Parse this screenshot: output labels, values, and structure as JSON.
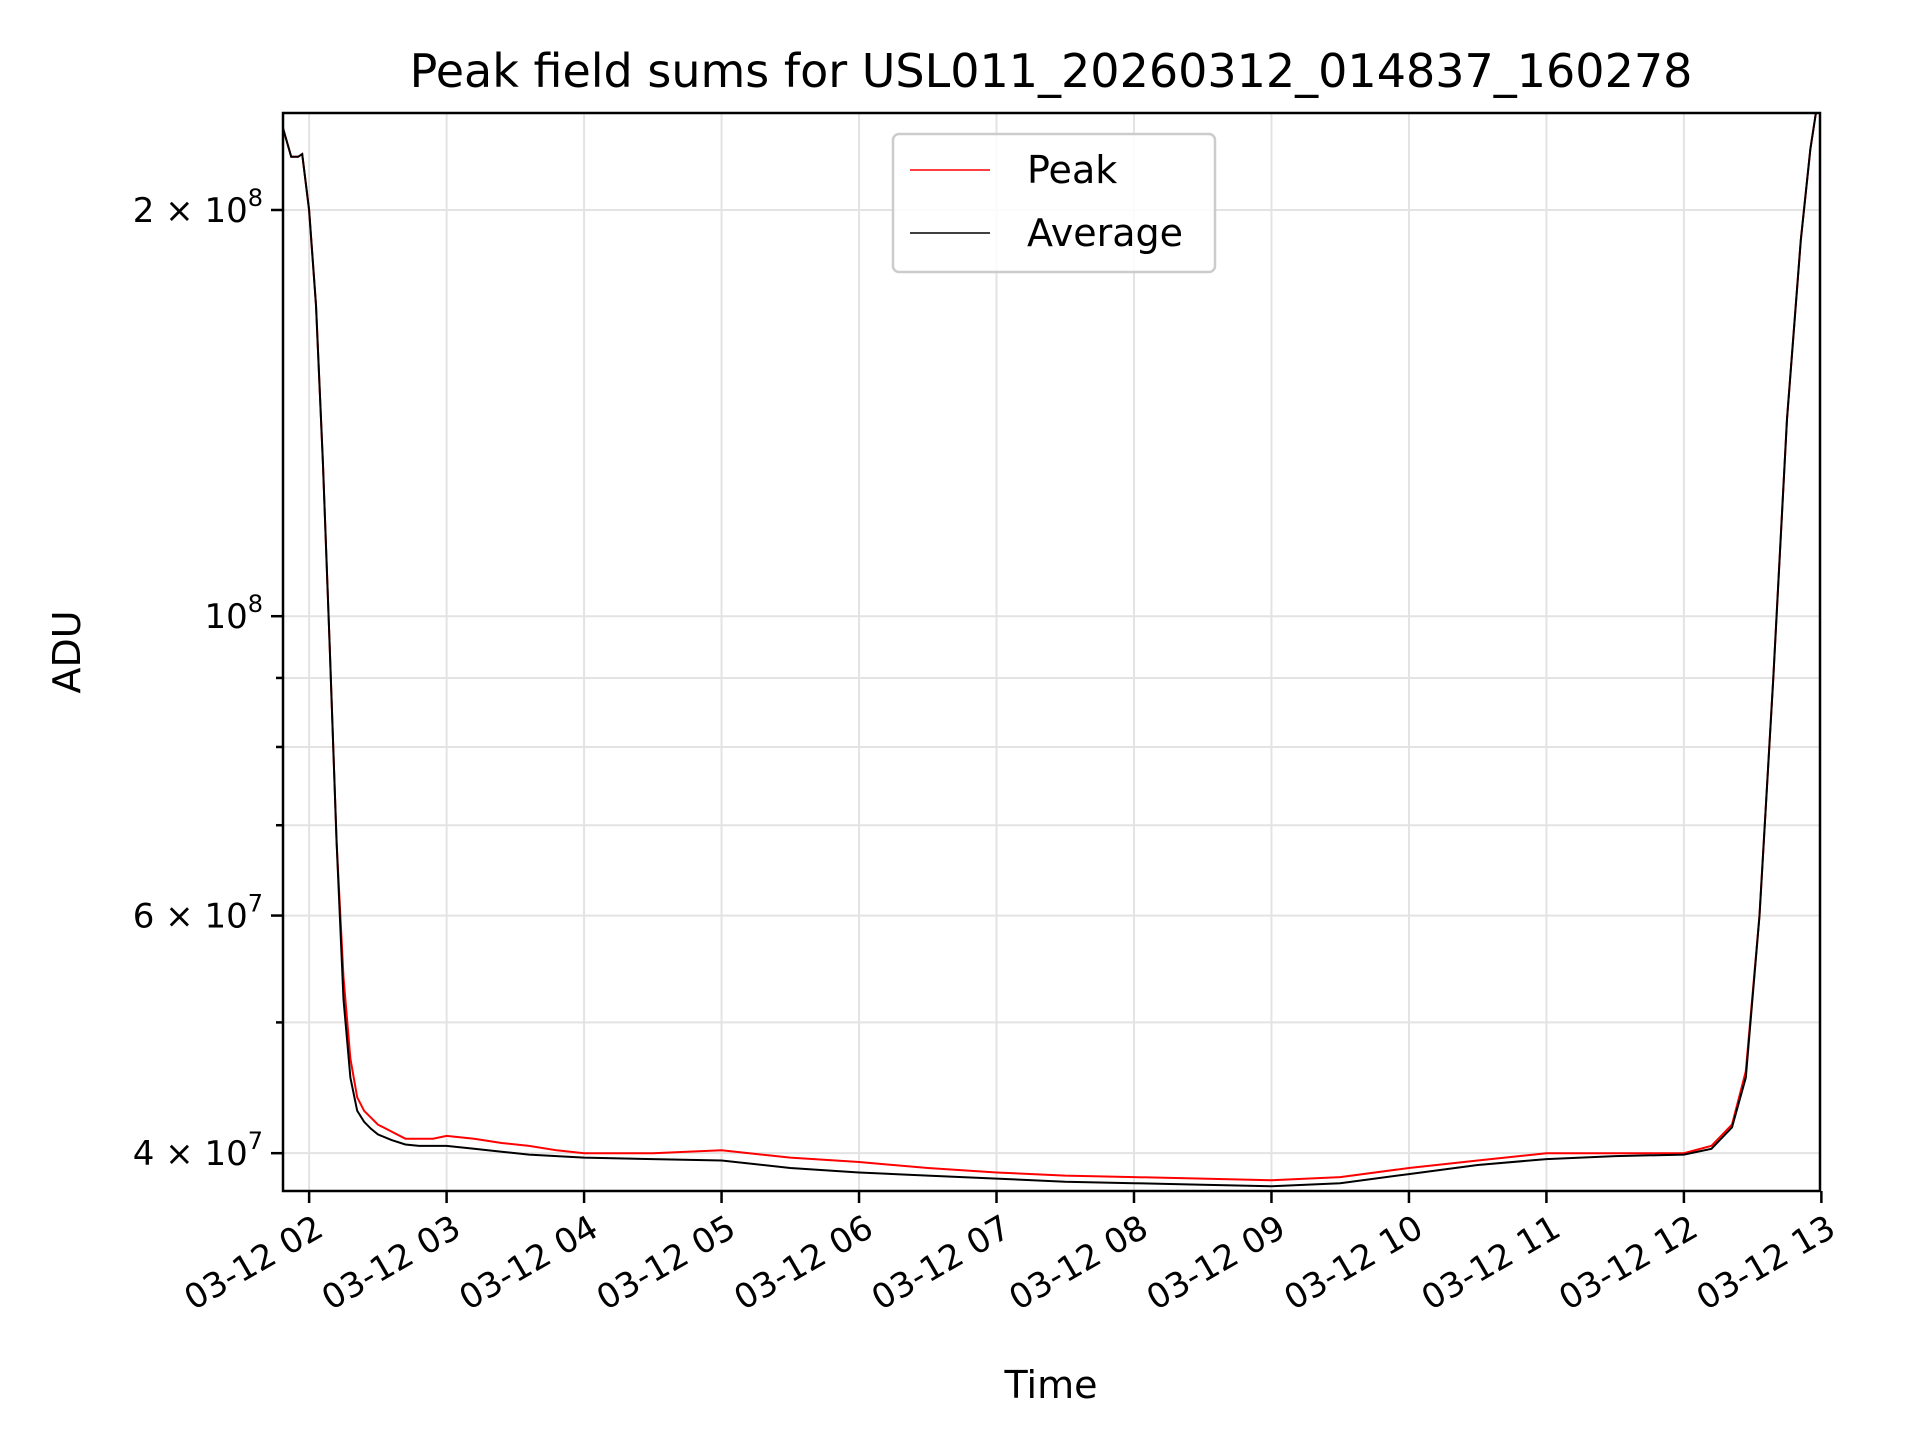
{
  "chart_data": {
    "type": "line",
    "title": "Peak field sums for USL011_20260312_014837_160278",
    "xlabel": "Time",
    "ylabel": "ADU",
    "yscale": "log",
    "ylim": [
      37500000,
      236000000
    ],
    "xlim": [
      1.81,
      12.99
    ],
    "x_unit": "hours since 2026-03-12 00:00",
    "grid": true,
    "legend_position": "upper-center",
    "x_ticks": [
      {
        "value": 2,
        "label": "03-12 02"
      },
      {
        "value": 3,
        "label": "03-12 03"
      },
      {
        "value": 4,
        "label": "03-12 04"
      },
      {
        "value": 5,
        "label": "03-12 05"
      },
      {
        "value": 6,
        "label": "03-12 06"
      },
      {
        "value": 7,
        "label": "03-12 07"
      },
      {
        "value": 8,
        "label": "03-12 08"
      },
      {
        "value": 9,
        "label": "03-12 09"
      },
      {
        "value": 10,
        "label": "03-12 10"
      },
      {
        "value": 11,
        "label": "03-12 11"
      },
      {
        "value": 12,
        "label": "03-12 12"
      },
      {
        "value": 13,
        "label": "03-12 13"
      }
    ],
    "y_major_ticks": [
      {
        "value": 40000000,
        "base": "4",
        "exp": "7",
        "label": "4 × 10^7"
      },
      {
        "value": 60000000,
        "base": "6",
        "exp": "7",
        "label": "6 × 10^7"
      },
      {
        "value": 100000000,
        "base": "",
        "exp": "8",
        "label": "10^8"
      },
      {
        "value": 200000000,
        "base": "2",
        "exp": "8",
        "label": "2 × 10^8"
      }
    ],
    "y_minor_ticks": [
      50000000,
      70000000,
      80000000,
      90000000
    ],
    "series": [
      {
        "name": "Peak",
        "color": "#ff0000",
        "x": [
          1.81,
          1.87,
          1.92,
          1.95,
          2.0,
          2.05,
          2.1,
          2.15,
          2.2,
          2.25,
          2.3,
          2.35,
          2.4,
          2.45,
          2.5,
          2.6,
          2.7,
          2.8,
          2.9,
          3.0,
          3.2,
          3.4,
          3.6,
          3.8,
          4.0,
          4.5,
          5.0,
          5.5,
          6.0,
          6.5,
          7.0,
          7.5,
          8.0,
          8.5,
          9.0,
          9.5,
          10.0,
          10.5,
          11.0,
          11.5,
          12.0,
          12.2,
          12.35,
          12.45,
          12.55,
          12.65,
          12.75,
          12.85,
          12.92,
          12.96,
          12.99
        ],
        "values": [
          230000000,
          219000000,
          219000000,
          220000000,
          200000000,
          170000000,
          130000000,
          95000000,
          68000000,
          54000000,
          47000000,
          44000000,
          43000000,
          42500000,
          42000000,
          41500000,
          41000000,
          41000000,
          41000000,
          41200000,
          41000000,
          40700000,
          40500000,
          40200000,
          40000000,
          40000000,
          40200000,
          39700000,
          39400000,
          39000000,
          38700000,
          38500000,
          38400000,
          38300000,
          38200000,
          38400000,
          39000000,
          39500000,
          40000000,
          40000000,
          40000000,
          40500000,
          42000000,
          46000000,
          60000000,
          90000000,
          140000000,
          190000000,
          222000000,
          236000000,
          236000000
        ]
      },
      {
        "name": "Average",
        "color": "#000000",
        "x": [
          1.81,
          1.87,
          1.92,
          1.95,
          2.0,
          2.05,
          2.1,
          2.15,
          2.2,
          2.25,
          2.3,
          2.35,
          2.4,
          2.45,
          2.5,
          2.6,
          2.7,
          2.8,
          2.9,
          3.0,
          3.2,
          3.4,
          3.6,
          3.8,
          4.0,
          4.5,
          5.0,
          5.5,
          6.0,
          6.5,
          7.0,
          7.5,
          8.0,
          8.5,
          9.0,
          9.5,
          10.0,
          10.5,
          11.0,
          11.5,
          12.0,
          12.2,
          12.35,
          12.45,
          12.55,
          12.65,
          12.75,
          12.85,
          12.92,
          12.96,
          12.99
        ],
        "values": [
          230000000,
          219000000,
          219000000,
          220000000,
          200000000,
          170000000,
          130000000,
          95000000,
          68000000,
          52000000,
          45500000,
          43000000,
          42200000,
          41700000,
          41300000,
          40900000,
          40600000,
          40500000,
          40500000,
          40500000,
          40300000,
          40100000,
          39900000,
          39800000,
          39700000,
          39600000,
          39500000,
          39000000,
          38700000,
          38500000,
          38300000,
          38100000,
          38000000,
          37900000,
          37800000,
          38000000,
          38600000,
          39200000,
          39600000,
          39800000,
          39900000,
          40300000,
          41800000,
          45500000,
          60000000,
          90000000,
          140000000,
          190000000,
          222000000,
          236000000,
          236000000
        ]
      }
    ]
  }
}
